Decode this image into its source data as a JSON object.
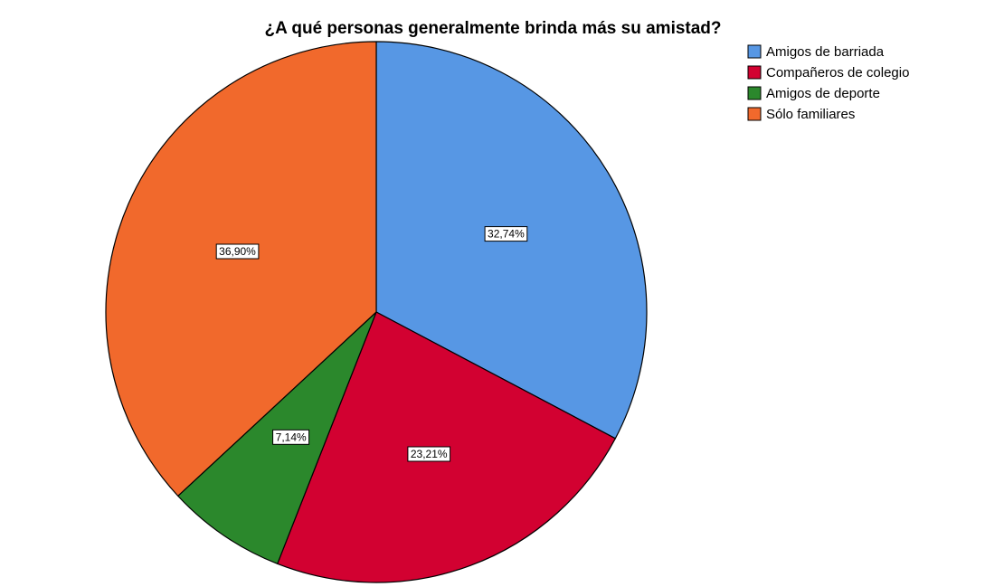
{
  "chart_data": {
    "type": "pie",
    "title": "¿A qué personas generalmente brinda más su amistad?",
    "slices": [
      {
        "label": "Amigos de barriada",
        "value": 32.74,
        "display": "32,74%",
        "color": "#5797e4"
      },
      {
        "label": "Compañeros de colegio",
        "value": 23.21,
        "display": "23,21%",
        "color": "#d20131"
      },
      {
        "label": "Amigos de deporte",
        "value": 7.14,
        "display": "7,14%",
        "color": "#2b882c"
      },
      {
        "label": "Sólo familiares",
        "value": 36.9,
        "display": "36,90%",
        "color": "#f1692c"
      }
    ],
    "start": "top",
    "direction": "clockwise",
    "legend_position": "top-right",
    "outline_color": "#000000"
  }
}
